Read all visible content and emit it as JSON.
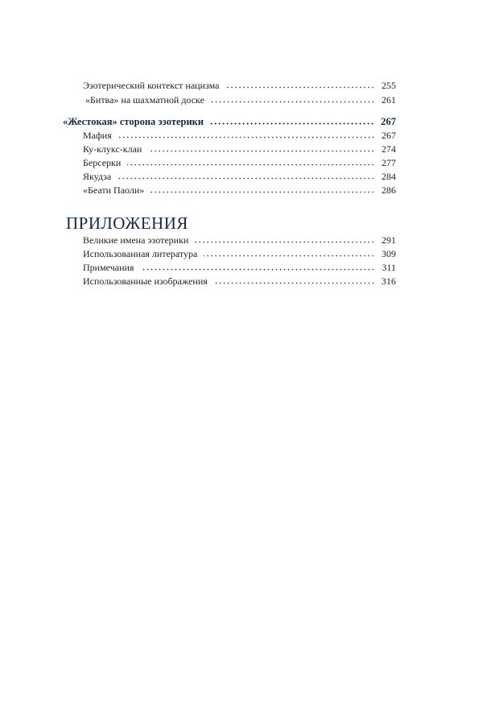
{
  "toc_part1": [
    {
      "title": "Эзотерический контекст нацизма",
      "page": "255",
      "level": 2
    },
    {
      "title": "«Битва» на шахматной доске",
      "page": "261",
      "level": 2
    },
    {
      "title": "«Жестокая» сторона эзотерики",
      "page": "267",
      "level": 1
    },
    {
      "title": "Мафия",
      "page": "267",
      "level": 2
    },
    {
      "title": "Ку-клукс-клан",
      "page": "274",
      "level": 2
    },
    {
      "title": "Берсерки",
      "page": "277",
      "level": 2
    },
    {
      "title": "Якудза",
      "page": "284",
      "level": 2
    },
    {
      "title": "«Беати Паоли»",
      "page": "286",
      "level": 2
    }
  ],
  "appendix": {
    "heading": "ПРИЛОЖЕНИЯ",
    "items": [
      {
        "title": "Великие имена эзотерики",
        "page": "291"
      },
      {
        "title": "Использованная литература",
        "page": "309"
      },
      {
        "title": "Примечания",
        "page": "311"
      },
      {
        "title": "Использованные изображения",
        "page": "316"
      }
    ]
  },
  "colors": {
    "heading": "#152848",
    "text": "#222222"
  }
}
